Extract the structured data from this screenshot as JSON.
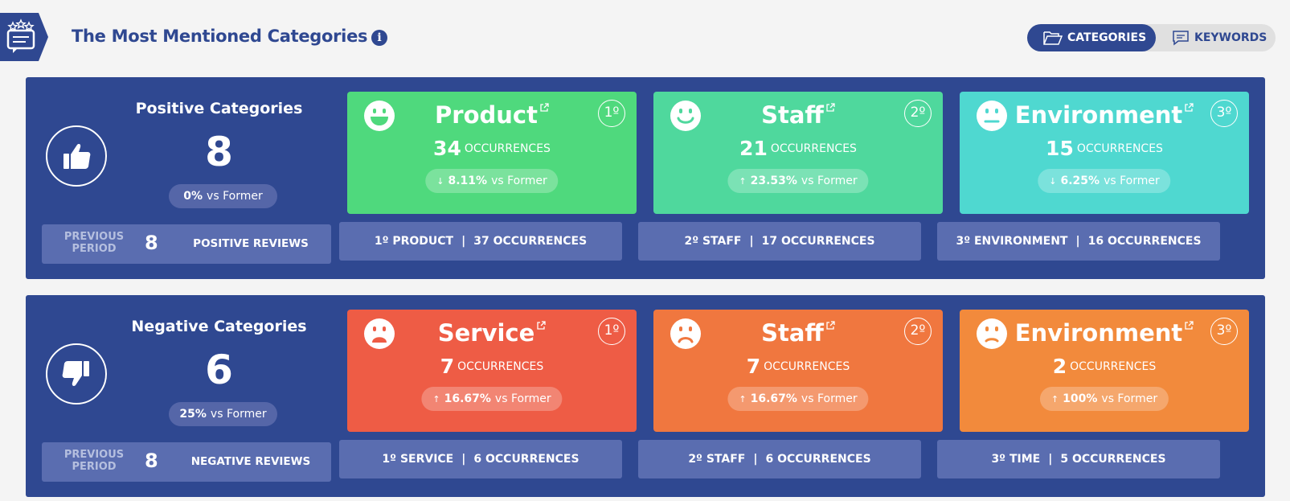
{
  "header": {
    "title": "The Most Mentioned Categories",
    "info_icon": "info-icon",
    "toggle": {
      "categories_label": "CATEGORIES",
      "keywords_label": "KEYWORDS",
      "active": "categories"
    }
  },
  "positive": {
    "title": "Positive Categories",
    "count": "8",
    "change": "0%",
    "change_suffix": "vs Former",
    "previous": {
      "label_line1": "PREVIOUS",
      "label_line2": "PERIOD",
      "value": "8",
      "text": "POSITIVE REVIEWS"
    },
    "cards": [
      {
        "name": "Product",
        "rank": "1º",
        "occurrences": "34",
        "occ_label": "OCCURRENCES",
        "delta": "8.11%",
        "delta_dir": "↓",
        "delta_suffix": "vs Former",
        "prev_rank": "1º",
        "prev_name": "PRODUCT",
        "prev_occ": "37 OCCURRENCES",
        "face": "grin-icon",
        "color": "#4fd97d"
      },
      {
        "name": "Staff",
        "rank": "2º",
        "occurrences": "21",
        "occ_label": "OCCURRENCES",
        "delta": "23.53%",
        "delta_dir": "↑",
        "delta_suffix": "vs Former",
        "prev_rank": "2º",
        "prev_name": "STAFF",
        "prev_occ": "17 OCCURRENCES",
        "face": "smile-icon",
        "color": "#4fd89d"
      },
      {
        "name": "Environment",
        "rank": "3º",
        "occurrences": "15",
        "occ_label": "OCCURRENCES",
        "delta": "6.25%",
        "delta_dir": "↓",
        "delta_suffix": "vs Former",
        "prev_rank": "3º",
        "prev_name": "ENVIRONMENT",
        "prev_occ": "16 OCCURRENCES",
        "face": "neutral-face-icon",
        "color": "#4fd8d0"
      }
    ]
  },
  "negative": {
    "title": "Negative Categories",
    "count": "6",
    "change": "25%",
    "change_suffix": "vs Former",
    "previous": {
      "label_line1": "PREVIOUS",
      "label_line2": "PERIOD",
      "value": "8",
      "text": "NEGATIVE REVIEWS"
    },
    "cards": [
      {
        "name": "Service",
        "rank": "1º",
        "occurrences": "7",
        "occ_label": "OCCURRENCES",
        "delta": "16.67%",
        "delta_dir": "↑",
        "delta_suffix": "vs Former",
        "prev_rank": "1º",
        "prev_name": "SERVICE",
        "prev_occ": "6 OCCURRENCES",
        "face": "very-sad-face-icon",
        "color": "#ee5c45"
      },
      {
        "name": "Staff",
        "rank": "2º",
        "occurrences": "7",
        "occ_label": "OCCURRENCES",
        "delta": "16.67%",
        "delta_dir": "↑",
        "delta_suffix": "vs Former",
        "prev_rank": "2º",
        "prev_name": "STAFF",
        "prev_occ": "6 OCCURRENCES",
        "face": "sad-face-icon",
        "color": "#f0773f"
      },
      {
        "name": "Environment",
        "rank": "3º",
        "occurrences": "2",
        "occ_label": "OCCURRENCES",
        "delta": "100%",
        "delta_dir": "↑",
        "delta_suffix": "vs Former",
        "prev_rank": "3º",
        "prev_name": "TIME",
        "prev_occ": "5 OCCURRENCES",
        "face": "slight-frown-icon",
        "color": "#f28a3c"
      }
    ]
  }
}
